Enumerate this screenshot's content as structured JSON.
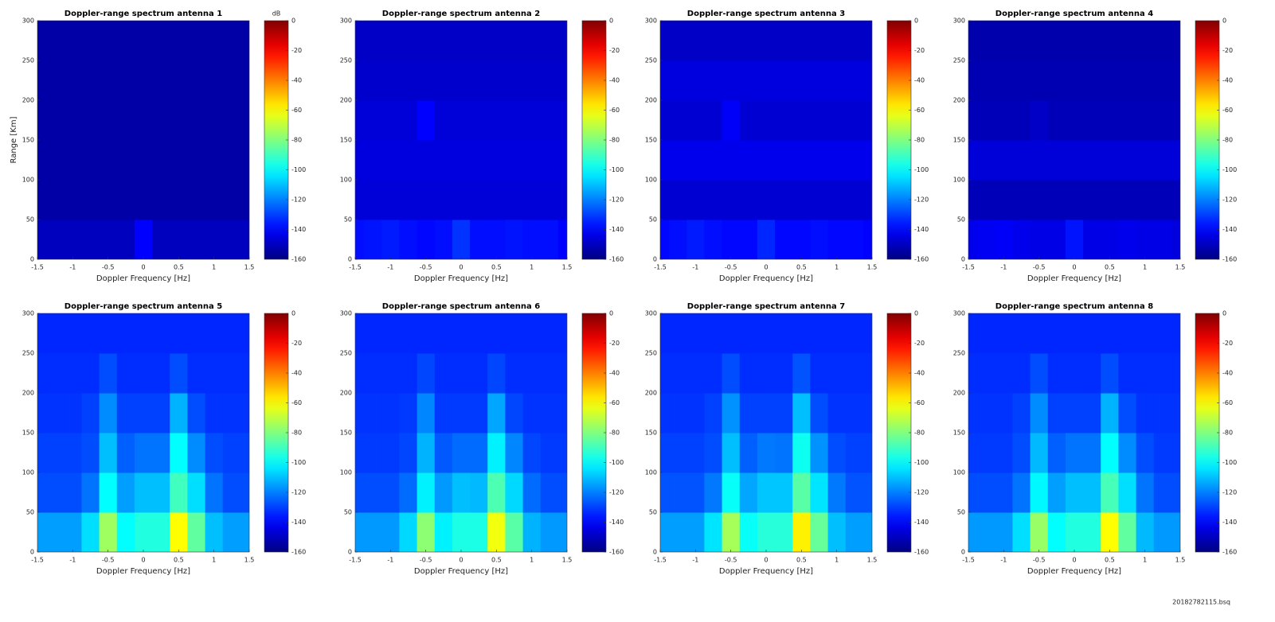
{
  "chart_data": [
    {
      "type": "heatmap",
      "title": "Doppler-range spectrum antenna 1",
      "xlabel": "Doppler Frequency [Hz]",
      "ylabel": "Range [Km]",
      "clabel": "dB",
      "x": [
        -1.5,
        -1.25,
        -1,
        -0.75,
        -0.5,
        -0.25,
        0,
        0.25,
        0.5,
        0.75,
        1,
        1.25,
        1.5
      ],
      "y": [
        25,
        75,
        125,
        175,
        225,
        275
      ],
      "z": [
        [
          -150,
          -150,
          -150,
          -150,
          -150,
          -150,
          -140,
          -150,
          -150,
          -150,
          -150,
          -150,
          -150
        ],
        [
          -154,
          -154,
          -154,
          -154,
          -154,
          -154,
          -154,
          -154,
          -154,
          -154,
          -154,
          -154,
          -154
        ],
        [
          -154,
          -154,
          -154,
          -154,
          -154,
          -154,
          -154,
          -154,
          -154,
          -154,
          -154,
          -154,
          -154
        ],
        [
          -154,
          -154,
          -154,
          -154,
          -154,
          -154,
          -154,
          -154,
          -154,
          -154,
          -154,
          -154,
          -154
        ],
        [
          -154,
          -154,
          -154,
          -154,
          -154,
          -154,
          -154,
          -154,
          -154,
          -154,
          -154,
          -154,
          -154
        ],
        [
          -154,
          -154,
          -154,
          -154,
          -154,
          -154,
          -154,
          -154,
          -154,
          -154,
          -154,
          -154,
          -154
        ]
      ],
      "xlim": [
        -1.5,
        1.5
      ],
      "xticks": [
        -1.5,
        -1,
        -0.5,
        0,
        0.5,
        1,
        1.5
      ],
      "ylim": [
        0,
        300
      ],
      "yticks": [
        0,
        50,
        100,
        150,
        200,
        250,
        300
      ],
      "clim": [
        -160,
        0
      ],
      "cticks": [
        0,
        -20,
        -40,
        -60,
        -80,
        -100,
        -120,
        -140,
        -160
      ]
    },
    {
      "type": "heatmap",
      "title": "Doppler-range spectrum antenna 2",
      "xlabel": "Doppler Frequency [Hz]",
      "x": [
        -1.5,
        -1.25,
        -1,
        -0.75,
        -0.5,
        -0.25,
        0,
        0.25,
        0.5,
        0.75,
        1,
        1.25,
        1.5
      ],
      "y": [
        25,
        75,
        125,
        175,
        225,
        275
      ],
      "z": [
        [
          -138,
          -137,
          -136,
          -138,
          -139,
          -138,
          -132,
          -138,
          -138,
          -137,
          -138,
          -138,
          -140
        ],
        [
          -146,
          -146,
          -146,
          -146,
          -146,
          -146,
          -146,
          -146,
          -146,
          -146,
          -146,
          -146,
          -146
        ],
        [
          -145,
          -145,
          -145,
          -145,
          -145,
          -145,
          -145,
          -145,
          -145,
          -145,
          -145,
          -145,
          -145
        ],
        [
          -146,
          -146,
          -146,
          -146,
          -140,
          -146,
          -146,
          -146,
          -146,
          -146,
          -146,
          -146,
          -146
        ],
        [
          -148,
          -148,
          -148,
          -148,
          -148,
          -148,
          -148,
          -148,
          -148,
          -148,
          -148,
          -148,
          -148
        ],
        [
          -149,
          -149,
          -149,
          -149,
          -149,
          -149,
          -149,
          -149,
          -149,
          -149,
          -149,
          -149,
          -149
        ]
      ],
      "xlim": [
        -1.5,
        1.5
      ],
      "xticks": [
        -1.5,
        -1,
        -0.5,
        0,
        0.5,
        1,
        1.5
      ],
      "ylim": [
        0,
        300
      ],
      "yticks": [
        0,
        50,
        100,
        150,
        200,
        250,
        300
      ],
      "clim": [
        -160,
        0
      ],
      "cticks": [
        0,
        -20,
        -40,
        -60,
        -80,
        -100,
        -120,
        -140,
        -160
      ]
    },
    {
      "type": "heatmap",
      "title": "Doppler-range spectrum antenna 3",
      "xlabel": "Doppler Frequency [Hz]",
      "x": [
        -1.5,
        -1.25,
        -1,
        -0.75,
        -0.5,
        -0.25,
        0,
        0.25,
        0.5,
        0.75,
        1,
        1.25,
        1.5
      ],
      "y": [
        25,
        75,
        125,
        175,
        225,
        275
      ],
      "z": [
        [
          -139,
          -138,
          -136,
          -138,
          -139,
          -139,
          -134,
          -139,
          -139,
          -138,
          -139,
          -139,
          -140
        ],
        [
          -147,
          -147,
          -147,
          -147,
          -147,
          -147,
          -147,
          -147,
          -147,
          -147,
          -147,
          -147,
          -147
        ],
        [
          -143,
          -143,
          -143,
          -143,
          -143,
          -143,
          -143,
          -143,
          -143,
          -143,
          -143,
          -143,
          -143
        ],
        [
          -147,
          -147,
          -147,
          -147,
          -141,
          -147,
          -147,
          -147,
          -147,
          -147,
          -147,
          -147,
          -147
        ],
        [
          -145,
          -145,
          -145,
          -145,
          -145,
          -145,
          -145,
          -145,
          -145,
          -145,
          -145,
          -145,
          -145
        ],
        [
          -149,
          -149,
          -149,
          -149,
          -149,
          -149,
          -149,
          -149,
          -149,
          -149,
          -149,
          -149,
          -149
        ]
      ],
      "xlim": [
        -1.5,
        1.5
      ],
      "xticks": [
        -1.5,
        -1,
        -0.5,
        0,
        0.5,
        1,
        1.5
      ],
      "ylim": [
        0,
        300
      ],
      "yticks": [
        0,
        50,
        100,
        150,
        200,
        250,
        300
      ],
      "clim": [
        -160,
        0
      ],
      "cticks": [
        0,
        -20,
        -40,
        -60,
        -80,
        -100,
        -120,
        -140,
        -160
      ]
    },
    {
      "type": "heatmap",
      "title": "Doppler-range spectrum antenna 4",
      "xlabel": "Doppler Frequency [Hz]",
      "x": [
        -1.5,
        -1.25,
        -1,
        -0.75,
        -0.5,
        -0.25,
        0,
        0.25,
        0.5,
        0.75,
        1,
        1.25,
        1.5
      ],
      "y": [
        25,
        75,
        125,
        175,
        225,
        275
      ],
      "z": [
        [
          -143,
          -142,
          -141,
          -143,
          -144,
          -144,
          -137,
          -144,
          -144,
          -143,
          -144,
          -144,
          -145
        ],
        [
          -151,
          -151,
          -151,
          -151,
          -151,
          -151,
          -151,
          -151,
          -151,
          -151,
          -151,
          -151,
          -151
        ],
        [
          -146,
          -146,
          -146,
          -146,
          -146,
          -146,
          -146,
          -146,
          -146,
          -146,
          -146,
          -146,
          -146
        ],
        [
          -151,
          -151,
          -151,
          -151,
          -149,
          -151,
          -151,
          -151,
          -151,
          -151,
          -151,
          -151,
          -151
        ],
        [
          -152,
          -152,
          -152,
          -152,
          -152,
          -152,
          -152,
          -152,
          -152,
          -152,
          -152,
          -152,
          -152
        ],
        [
          -153,
          -153,
          -153,
          -153,
          -153,
          -153,
          -153,
          -153,
          -153,
          -153,
          -153,
          -153,
          -153
        ]
      ],
      "xlim": [
        -1.5,
        1.5
      ],
      "xticks": [
        -1.5,
        -1,
        -0.5,
        0,
        0.5,
        1,
        1.5
      ],
      "ylim": [
        0,
        300
      ],
      "yticks": [
        0,
        50,
        100,
        150,
        200,
        250,
        300
      ],
      "clim": [
        -160,
        0
      ],
      "cticks": [
        0,
        -20,
        -40,
        -60,
        -80,
        -100,
        -120,
        -140,
        -160
      ]
    },
    {
      "type": "heatmap",
      "title": "Doppler-range spectrum antenna 5",
      "xlabel": "Doppler Frequency [Hz]",
      "x": [
        -1.5,
        -1.25,
        -1,
        -0.75,
        -0.5,
        -0.25,
        0,
        0.25,
        0.5,
        0.75,
        1,
        1.25,
        1.5
      ],
      "y": [
        25,
        75,
        125,
        175,
        225,
        275
      ],
      "z": [
        [
          -115,
          -115,
          -115,
          -105,
          -75,
          -100,
          -95,
          -95,
          -60,
          -85,
          -110,
          -115,
          -115
        ],
        [
          -128,
          -128,
          -128,
          -122,
          -100,
          -115,
          -110,
          -110,
          -90,
          -105,
          -122,
          -128,
          -128
        ],
        [
          -130,
          -130,
          -130,
          -128,
          -110,
          -125,
          -122,
          -122,
          -100,
          -118,
          -128,
          -130,
          -130
        ],
        [
          -132,
          -132,
          -132,
          -130,
          -118,
          -130,
          -130,
          -130,
          -112,
          -128,
          -132,
          -132,
          -132
        ],
        [
          -133,
          -133,
          -133,
          -133,
          -128,
          -133,
          -133,
          -133,
          -128,
          -133,
          -133,
          -133,
          -133
        ],
        [
          -134,
          -134,
          -134,
          -134,
          -134,
          -134,
          -134,
          -134,
          -134,
          -134,
          -134,
          -134,
          -134
        ]
      ],
      "xlim": [
        -1.5,
        1.5
      ],
      "xticks": [
        -1.5,
        -1,
        -0.5,
        0,
        0.5,
        1,
        1.5
      ],
      "ylim": [
        0,
        300
      ],
      "yticks": [
        0,
        50,
        100,
        150,
        200,
        250,
        300
      ],
      "clim": [
        -160,
        0
      ],
      "cticks": [
        0,
        -20,
        -40,
        -60,
        -80,
        -100,
        -120,
        -140,
        -160
      ]
    },
    {
      "type": "heatmap",
      "title": "Doppler-range spectrum antenna 6",
      "xlabel": "Doppler Frequency [Hz]",
      "x": [
        -1.5,
        -1.25,
        -1,
        -0.75,
        -0.5,
        -0.25,
        0,
        0.25,
        0.5,
        0.75,
        1,
        1.25,
        1.5
      ],
      "y": [
        25,
        75,
        125,
        175,
        225,
        275
      ],
      "z": [
        [
          -116,
          -116,
          -116,
          -106,
          -78,
          -102,
          -96,
          -96,
          -62,
          -86,
          -112,
          -116,
          -116
        ],
        [
          -128,
          -128,
          -128,
          -123,
          -102,
          -116,
          -110,
          -111,
          -88,
          -106,
          -123,
          -128,
          -128
        ],
        [
          -131,
          -131,
          -131,
          -129,
          -112,
          -126,
          -123,
          -123,
          -102,
          -119,
          -129,
          -131,
          -131
        ],
        [
          -132,
          -132,
          -132,
          -131,
          -119,
          -131,
          -131,
          -131,
          -114,
          -129,
          -132,
          -132,
          -132
        ],
        [
          -133,
          -133,
          -133,
          -133,
          -129,
          -133,
          -133,
          -133,
          -129,
          -133,
          -133,
          -133,
          -133
        ],
        [
          -134,
          -134,
          -134,
          -134,
          -134,
          -134,
          -134,
          -134,
          -134,
          -134,
          -134,
          -134,
          -134
        ]
      ],
      "xlim": [
        -1.5,
        1.5
      ],
      "xticks": [
        -1.5,
        -1,
        -0.5,
        0,
        0.5,
        1,
        1.5
      ],
      "ylim": [
        0,
        300
      ],
      "yticks": [
        0,
        50,
        100,
        150,
        200,
        250,
        300
      ],
      "clim": [
        -160,
        0
      ],
      "cticks": [
        0,
        -20,
        -40,
        -60,
        -80,
        -100,
        -120,
        -140,
        -160
      ]
    },
    {
      "type": "heatmap",
      "title": "Doppler-range spectrum antenna 7",
      "xlabel": "Doppler Frequency [Hz]",
      "x": [
        -1.5,
        -1.25,
        -1,
        -0.75,
        -0.5,
        -0.25,
        0,
        0.25,
        0.5,
        0.75,
        1,
        1.25,
        1.5
      ],
      "y": [
        25,
        75,
        125,
        175,
        225,
        275
      ],
      "z": [
        [
          -115,
          -115,
          -115,
          -104,
          -74,
          -99,
          -94,
          -94,
          -58,
          -84,
          -110,
          -115,
          -115
        ],
        [
          -127,
          -127,
          -127,
          -121,
          -99,
          -114,
          -109,
          -109,
          -86,
          -104,
          -121,
          -127,
          -127
        ],
        [
          -130,
          -130,
          -130,
          -128,
          -110,
          -125,
          -121,
          -122,
          -98,
          -117,
          -128,
          -130,
          -130
        ],
        [
          -132,
          -132,
          -132,
          -130,
          -117,
          -130,
          -130,
          -130,
          -110,
          -128,
          -132,
          -132,
          -132
        ],
        [
          -133,
          -133,
          -133,
          -133,
          -128,
          -133,
          -133,
          -133,
          -127,
          -133,
          -133,
          -133,
          -133
        ],
        [
          -134,
          -134,
          -134,
          -134,
          -134,
          -134,
          -134,
          -134,
          -134,
          -134,
          -134,
          -134,
          -134
        ]
      ],
      "xlim": [
        -1.5,
        1.5
      ],
      "xticks": [
        -1.5,
        -1,
        -0.5,
        0,
        0.5,
        1,
        1.5
      ],
      "ylim": [
        0,
        300
      ],
      "yticks": [
        0,
        50,
        100,
        150,
        200,
        250,
        300
      ],
      "clim": [
        -160,
        0
      ],
      "cticks": [
        0,
        -20,
        -40,
        -60,
        -80,
        -100,
        -120,
        -140,
        -160
      ]
    },
    {
      "type": "heatmap",
      "title": "Doppler-range spectrum antenna 8",
      "xlabel": "Doppler Frequency [Hz]",
      "x": [
        -1.5,
        -1.25,
        -1,
        -0.75,
        -0.5,
        -0.25,
        0,
        0.25,
        0.5,
        0.75,
        1,
        1.25,
        1.5
      ],
      "y": [
        25,
        75,
        125,
        175,
        225,
        275
      ],
      "z": [
        [
          -116,
          -116,
          -116,
          -105,
          -76,
          -100,
          -95,
          -95,
          -60,
          -85,
          -111,
          -116,
          -116
        ],
        [
          -128,
          -128,
          -128,
          -122,
          -101,
          -115,
          -110,
          -110,
          -89,
          -105,
          -122,
          -128,
          -128
        ],
        [
          -131,
          -131,
          -131,
          -128,
          -111,
          -125,
          -122,
          -122,
          -100,
          -118,
          -128,
          -131,
          -131
        ],
        [
          -132,
          -132,
          -132,
          -130,
          -118,
          -130,
          -130,
          -130,
          -112,
          -128,
          -132,
          -132,
          -132
        ],
        [
          -133,
          -133,
          -133,
          -133,
          -128,
          -133,
          -133,
          -133,
          -128,
          -133,
          -133,
          -133,
          -133
        ],
        [
          -134,
          -134,
          -134,
          -134,
          -134,
          -134,
          -134,
          -134,
          -134,
          -134,
          -134,
          -134,
          -134
        ]
      ],
      "xlim": [
        -1.5,
        1.5
      ],
      "xticks": [
        -1.5,
        -1,
        -0.5,
        0,
        0.5,
        1,
        1.5
      ],
      "ylim": [
        0,
        300
      ],
      "yticks": [
        0,
        50,
        100,
        150,
        200,
        250,
        300
      ],
      "clim": [
        -160,
        0
      ],
      "cticks": [
        0,
        -20,
        -40,
        -60,
        -80,
        -100,
        -120,
        -140,
        -160
      ]
    }
  ],
  "footer": "20182782115.bsq"
}
